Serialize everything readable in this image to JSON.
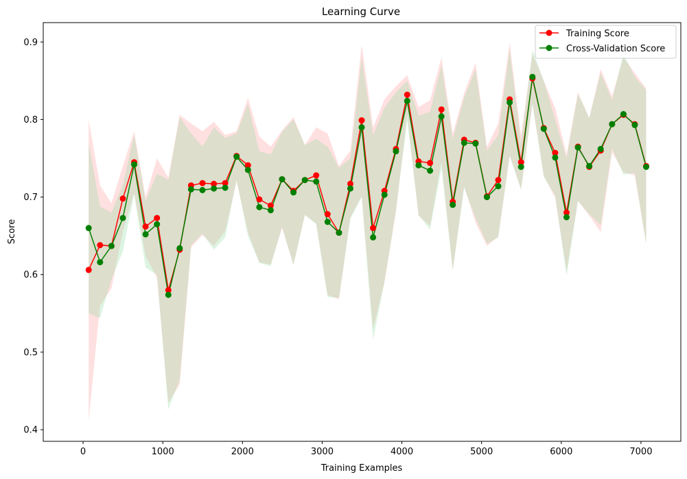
{
  "chart_data": {
    "type": "line",
    "title": "Learning Curve",
    "xlabel": "Training Examples",
    "ylabel": "Score",
    "xlim": [
      -500,
      7500
    ],
    "ylim": [
      0.385,
      0.925
    ],
    "xticks": [
      0,
      1000,
      2000,
      3000,
      4000,
      5000,
      6000,
      7000
    ],
    "yticks": [
      0.4,
      0.5,
      0.6,
      0.7,
      0.8,
      0.9
    ],
    "legend_position": "top-right",
    "x": [
      70,
      213,
      356,
      499,
      641,
      784,
      927,
      1070,
      1212,
      1355,
      1498,
      1641,
      1783,
      1926,
      2069,
      2212,
      2354,
      2497,
      2640,
      2783,
      2925,
      3068,
      3211,
      3354,
      3496,
      3639,
      3782,
      3925,
      4067,
      4210,
      4353,
      4496,
      4638,
      4781,
      4924,
      5067,
      5209,
      5352,
      5495,
      5638,
      5780,
      5923,
      6066,
      6209,
      6351,
      6494,
      6637,
      6780,
      6922,
      7065
    ],
    "series": [
      {
        "name": "Training Score",
        "color": "#ff0000",
        "band_color": "#ff9999",
        "values": [
          0.606,
          0.638,
          0.637,
          0.698,
          0.745,
          0.662,
          0.673,
          0.58,
          0.632,
          0.715,
          0.718,
          0.717,
          0.718,
          0.753,
          0.741,
          0.697,
          0.689,
          0.723,
          0.708,
          0.722,
          0.728,
          0.678,
          0.654,
          0.717,
          0.799,
          0.66,
          0.708,
          0.762,
          0.832,
          0.746,
          0.744,
          0.813,
          0.694,
          0.774,
          0.77,
          0.701,
          0.722,
          0.826,
          0.745,
          0.853,
          0.789,
          0.757,
          0.68,
          0.765,
          0.739,
          0.76,
          0.794,
          0.806,
          0.794,
          0.74
        ],
        "upper": [
          0.8,
          0.715,
          0.692,
          0.74,
          0.785,
          0.7,
          0.75,
          0.725,
          0.806,
          0.795,
          0.785,
          0.797,
          0.78,
          0.785,
          0.828,
          0.778,
          0.765,
          0.786,
          0.803,
          0.767,
          0.79,
          0.782,
          0.74,
          0.76,
          0.897,
          0.79,
          0.826,
          0.843,
          0.857,
          0.816,
          0.825,
          0.88,
          0.782,
          0.834,
          0.873,
          0.765,
          0.795,
          0.899,
          0.779,
          0.885,
          0.85,
          0.815,
          0.755,
          0.835,
          0.802,
          0.865,
          0.83,
          0.88,
          0.86,
          0.84
        ],
        "lower": [
          0.412,
          0.56,
          0.582,
          0.656,
          0.705,
          0.624,
          0.596,
          0.435,
          0.458,
          0.635,
          0.651,
          0.637,
          0.656,
          0.721,
          0.654,
          0.616,
          0.613,
          0.66,
          0.613,
          0.677,
          0.666,
          0.574,
          0.568,
          0.674,
          0.701,
          0.53,
          0.59,
          0.681,
          0.807,
          0.676,
          0.663,
          0.746,
          0.606,
          0.714,
          0.667,
          0.637,
          0.649,
          0.753,
          0.711,
          0.821,
          0.728,
          0.699,
          0.605,
          0.695,
          0.676,
          0.655,
          0.758,
          0.732,
          0.728,
          0.64
        ]
      },
      {
        "name": "Cross-Validation Score",
        "color": "#008000",
        "band_color": "#90dca0",
        "values": [
          0.66,
          0.616,
          0.637,
          0.673,
          0.742,
          0.652,
          0.665,
          0.574,
          0.634,
          0.71,
          0.709,
          0.711,
          0.712,
          0.752,
          0.735,
          0.687,
          0.683,
          0.723,
          0.706,
          0.722,
          0.72,
          0.668,
          0.654,
          0.711,
          0.79,
          0.648,
          0.703,
          0.759,
          0.824,
          0.741,
          0.734,
          0.804,
          0.69,
          0.77,
          0.769,
          0.7,
          0.714,
          0.822,
          0.739,
          0.855,
          0.788,
          0.751,
          0.674,
          0.764,
          0.74,
          0.762,
          0.794,
          0.807,
          0.793,
          0.739
        ],
        "upper": [
          0.77,
          0.688,
          0.68,
          0.716,
          0.78,
          0.695,
          0.73,
          0.722,
          0.803,
          0.782,
          0.765,
          0.79,
          0.776,
          0.782,
          0.82,
          0.759,
          0.755,
          0.784,
          0.8,
          0.767,
          0.775,
          0.765,
          0.738,
          0.75,
          0.88,
          0.78,
          0.815,
          0.835,
          0.85,
          0.805,
          0.81,
          0.87,
          0.775,
          0.828,
          0.865,
          0.76,
          0.78,
          0.89,
          0.769,
          0.89,
          0.85,
          0.8,
          0.75,
          0.833,
          0.802,
          0.86,
          0.825,
          0.885,
          0.855,
          0.838
        ],
        "lower": [
          0.55,
          0.544,
          0.594,
          0.63,
          0.704,
          0.609,
          0.6,
          0.426,
          0.465,
          0.638,
          0.653,
          0.632,
          0.648,
          0.722,
          0.65,
          0.615,
          0.611,
          0.662,
          0.612,
          0.677,
          0.665,
          0.571,
          0.57,
          0.672,
          0.7,
          0.516,
          0.591,
          0.683,
          0.798,
          0.677,
          0.658,
          0.738,
          0.605,
          0.712,
          0.673,
          0.64,
          0.648,
          0.754,
          0.709,
          0.82,
          0.726,
          0.702,
          0.598,
          0.695,
          0.678,
          0.664,
          0.763,
          0.729,
          0.731,
          0.64
        ]
      }
    ]
  }
}
